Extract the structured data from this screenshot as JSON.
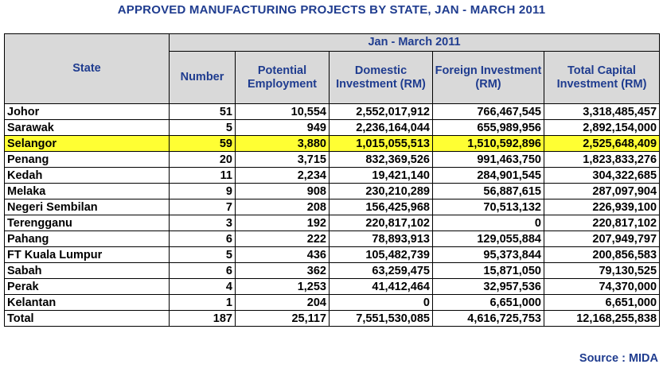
{
  "title": "APPROVED MANUFACTURING PROJECTS BY STATE, JAN - MARCH 2011",
  "header": {
    "state": "State",
    "period": "Jan - March 2011",
    "columns": [
      "Number",
      "Potential Employment",
      "Domestic Investment (RM)",
      "Foreign Investment (RM)",
      "Total Capital Investment (RM)"
    ]
  },
  "rows": [
    {
      "state": "Johor",
      "number": "51",
      "employment": "10,554",
      "domestic": "2,552,017,912",
      "foreign": "766,467,545",
      "total": "3,318,485,457"
    },
    {
      "state": "Sarawak",
      "number": "5",
      "employment": "949",
      "domestic": "2,236,164,044",
      "foreign": "655,989,956",
      "total": "2,892,154,000"
    },
    {
      "state": "Selangor",
      "number": "59",
      "employment": "3,880",
      "domestic": "1,015,055,513",
      "foreign": "1,510,592,896",
      "total": "2,525,648,409"
    },
    {
      "state": "Penang",
      "number": "20",
      "employment": "3,715",
      "domestic": "832,369,526",
      "foreign": "991,463,750",
      "total": "1,823,833,276"
    },
    {
      "state": "Kedah",
      "number": "11",
      "employment": "2,234",
      "domestic": "19,421,140",
      "foreign": "284,901,545",
      "total": "304,322,685"
    },
    {
      "state": "Melaka",
      "number": "9",
      "employment": "908",
      "domestic": "230,210,289",
      "foreign": "56,887,615",
      "total": "287,097,904"
    },
    {
      "state": "Negeri Sembilan",
      "number": "7",
      "employment": "208",
      "domestic": "156,425,968",
      "foreign": "70,513,132",
      "total": "226,939,100"
    },
    {
      "state": "Terengganu",
      "number": "3",
      "employment": "192",
      "domestic": "220,817,102",
      "foreign": "0",
      "total": "220,817,102"
    },
    {
      "state": "Pahang",
      "number": "6",
      "employment": "222",
      "domestic": "78,893,913",
      "foreign": "129,055,884",
      "total": "207,949,797"
    },
    {
      "state": "FT Kuala Lumpur",
      "number": "5",
      "employment": "436",
      "domestic": "105,482,739",
      "foreign": "95,373,844",
      "total": "200,856,583"
    },
    {
      "state": "Sabah",
      "number": "6",
      "employment": "362",
      "domestic": "63,259,475",
      "foreign": "15,871,050",
      "total": "79,130,525"
    },
    {
      "state": "Perak",
      "number": "4",
      "employment": "1,253",
      "domestic": "41,412,464",
      "foreign": "32,957,536",
      "total": "74,370,000"
    },
    {
      "state": "Kelantan",
      "number": "1",
      "employment": "204",
      "domestic": "0",
      "foreign": "6,651,000",
      "total": "6,651,000"
    },
    {
      "state": "Total",
      "number": "187",
      "employment": "25,117",
      "domestic": "7,551,530,085",
      "foreign": "4,616,725,753",
      "total": "12,168,255,838"
    }
  ],
  "highlight_row": "Selangor",
  "colors": {
    "title": "#1f3c8f",
    "header_bg": "#d9d9d9",
    "highlight": "#ffff33"
  },
  "source": "Source : MIDA"
}
